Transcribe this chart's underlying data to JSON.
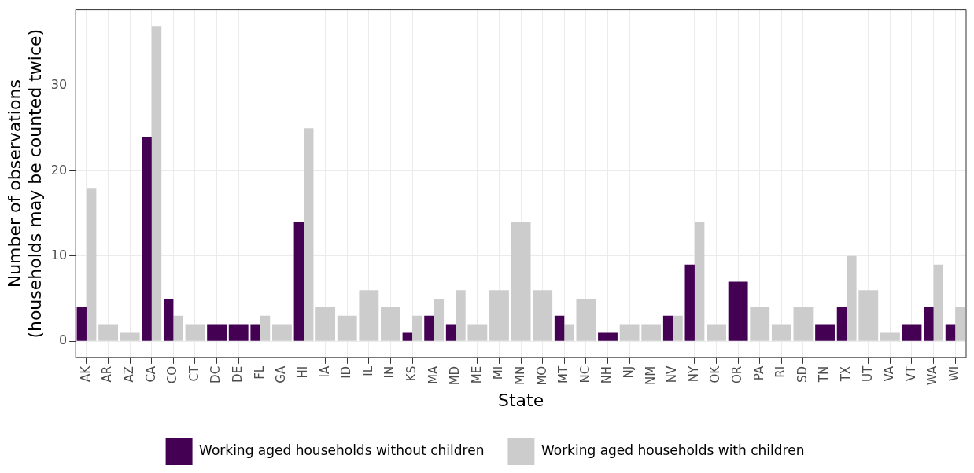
{
  "chart_data": {
    "type": "bar",
    "xlabel": "State",
    "ylabel": "Number of observations\n(households may be counted twice)",
    "categories": [
      "AK",
      "AR",
      "AZ",
      "CA",
      "CO",
      "CT",
      "DC",
      "DE",
      "FL",
      "GA",
      "HI",
      "IA",
      "ID",
      "IL",
      "IN",
      "KS",
      "MA",
      "MD",
      "ME",
      "MI",
      "MN",
      "MO",
      "MT",
      "NC",
      "NH",
      "NJ",
      "NM",
      "NV",
      "NY",
      "OK",
      "OR",
      "PA",
      "RI",
      "SD",
      "TN",
      "TX",
      "UT",
      "VA",
      "VT",
      "WA",
      "WI"
    ],
    "series": [
      {
        "name": "Working aged households without children",
        "color": "#440154",
        "values": [
          4,
          null,
          null,
          24,
          5,
          null,
          2,
          2,
          2,
          null,
          14,
          null,
          null,
          null,
          null,
          1,
          3,
          2,
          null,
          null,
          null,
          null,
          3,
          null,
          1,
          null,
          null,
          3,
          9,
          null,
          7,
          null,
          null,
          null,
          2,
          4,
          null,
          null,
          2,
          4,
          2
        ]
      },
      {
        "name": "Working aged households with children",
        "color": "#cccccc",
        "values": [
          18,
          2,
          1,
          37,
          3,
          2,
          null,
          null,
          3,
          2,
          25,
          4,
          3,
          6,
          4,
          3,
          5,
          6,
          2,
          6,
          14,
          6,
          2,
          5,
          null,
          2,
          2,
          3,
          14,
          2,
          null,
          4,
          2,
          4,
          null,
          10,
          6,
          1,
          null,
          9,
          4
        ]
      }
    ],
    "ylim": [
      -1.9,
      38.9
    ],
    "yticks": [
      0,
      10,
      20,
      30
    ],
    "grid": true,
    "legend": "bottom"
  }
}
